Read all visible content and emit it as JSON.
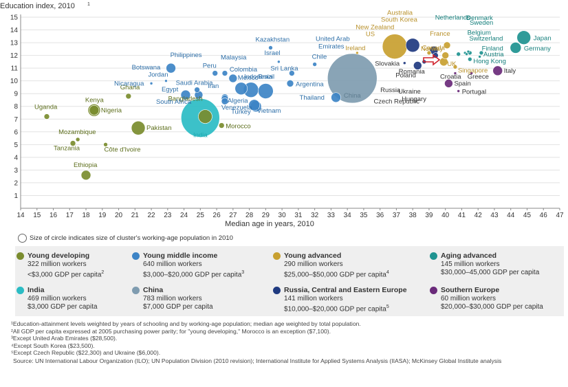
{
  "chart_data": {
    "type": "scatter",
    "ylabel": "Education index, 2010",
    "ylabel_sup": "1",
    "xlabel": "Median age in years, 2010",
    "xlim": [
      14,
      47
    ],
    "ylim": [
      0,
      15
    ],
    "xticks": [
      14,
      15,
      16,
      17,
      18,
      19,
      20,
      21,
      22,
      23,
      24,
      25,
      26,
      27,
      28,
      29,
      30,
      31,
      32,
      33,
      34,
      35,
      36,
      37,
      38,
      39,
      40,
      41,
      42,
      43,
      44,
      45,
      46,
      47
    ],
    "yticks": [
      1,
      2,
      3,
      4,
      5,
      6,
      7,
      8,
      9,
      10,
      11,
      12,
      13,
      14,
      15
    ],
    "grid": true,
    "series": [
      {
        "name": "Young developing",
        "color": "#7a8c2e",
        "points": [
          {
            "label": "Uganda",
            "x": 15.6,
            "y": 7.2,
            "r": 4
          },
          {
            "label": "Kenya",
            "x": 18.5,
            "y": 7.7,
            "r": 9
          },
          {
            "label": "Nigeria",
            "x": 18.5,
            "y": 7.7,
            "r": 7
          },
          {
            "label": "Ghana",
            "x": 20.6,
            "y": 8.8,
            "r": 4
          },
          {
            "label": "Mozambique",
            "x": 17.5,
            "y": 5.4,
            "r": 3
          },
          {
            "label": "Tanzania",
            "x": 17.2,
            "y": 5.1,
            "r": 4
          },
          {
            "label": "Côte d'Ivoire",
            "x": 19.2,
            "y": 5.0,
            "r": 3
          },
          {
            "label": "Ethiopia",
            "x": 18.0,
            "y": 2.6,
            "r": 7
          },
          {
            "label": "Pakistan",
            "x": 21.2,
            "y": 6.3,
            "r": 10
          },
          {
            "label": "Bangladesh",
            "x": 25.3,
            "y": 7.2,
            "r": 10
          },
          {
            "label": "Morocco",
            "x": 26.3,
            "y": 6.5,
            "r": 4
          }
        ]
      },
      {
        "name": "Young middle income",
        "color": "#3d84c6",
        "points": [
          {
            "label": "Botswana",
            "x": 23.2,
            "y": 11.0,
            "r": 7
          },
          {
            "label": "Philippines",
            "x": 23.2,
            "y": 11.0,
            "r": 0
          },
          {
            "label": "Jordan",
            "x": 22.9,
            "y": 10.0,
            "r": 2
          },
          {
            "label": "Nicaragua",
            "x": 22.0,
            "y": 9.8,
            "r": 2
          },
          {
            "label": "Saudi Arabia",
            "x": 24.8,
            "y": 9.3,
            "r": 4
          },
          {
            "label": "Egypt",
            "x": 24.1,
            "y": 8.9,
            "r": 7
          },
          {
            "label": "South Africa",
            "x": 24.9,
            "y": 8.9,
            "r": 6
          },
          {
            "label": "Peru",
            "x": 25.9,
            "y": 10.6,
            "r": 4
          },
          {
            "label": "Malaysia",
            "x": 26.5,
            "y": 10.6,
            "r": 4
          },
          {
            "label": "Colombia",
            "x": 27.0,
            "y": 10.2,
            "r": 6
          },
          {
            "label": "Iran",
            "x": 26.5,
            "y": 8.7,
            "r": 5
          },
          {
            "label": "Algeria",
            "x": 26.5,
            "y": 8.6,
            "r": 5
          },
          {
            "label": "Venezuela",
            "x": 26.5,
            "y": 8.4,
            "r": 5
          },
          {
            "label": "Mexico",
            "x": 27.5,
            "y": 9.4,
            "r": 9
          },
          {
            "label": "Indonesia",
            "x": 28.1,
            "y": 9.3,
            "r": 11
          },
          {
            "label": "Brazil",
            "x": 29.0,
            "y": 9.2,
            "r": 11
          },
          {
            "label": "Turkey",
            "x": 28.4,
            "y": 8.0,
            "r": 8
          },
          {
            "label": "Vietnam",
            "x": 28.3,
            "y": 8.1,
            "r": 8
          },
          {
            "label": "Kazakhstan",
            "x": 29.3,
            "y": 12.6,
            "r": 3
          },
          {
            "label": "Israel",
            "x": 29.8,
            "y": 11.5,
            "r": 2
          },
          {
            "label": "Sri Lanka",
            "x": 30.6,
            "y": 10.6,
            "r": 4
          },
          {
            "label": "Argentina",
            "x": 30.5,
            "y": 9.8,
            "r": 5
          },
          {
            "label": "Chile",
            "x": 32.0,
            "y": 11.3,
            "r": 3
          },
          {
            "label": "Thailand",
            "x": 33.3,
            "y": 8.7,
            "r": 7
          },
          {
            "label": "United Arab Emirates",
            "x": 32.9,
            "y": 12.0,
            "r": 0
          }
        ]
      },
      {
        "name": "Young advanced",
        "color": "#c8a030",
        "points": [
          {
            "label": "Australia",
            "x": 36.9,
            "y": 12.7,
            "r": 18
          },
          {
            "label": "South Korea",
            "x": 36.9,
            "y": 12.7,
            "r": 0
          },
          {
            "label": "New Zealand",
            "x": 36.7,
            "y": 12.7,
            "r": 0
          },
          {
            "label": "US",
            "x": 36.6,
            "y": 12.7,
            "r": 0
          },
          {
            "label": "Ireland",
            "x": 34.6,
            "y": 12.2,
            "r": 2
          },
          {
            "label": "France",
            "x": 40.1,
            "y": 12.8,
            "r": 5
          },
          {
            "label": "Canada",
            "x": 40.0,
            "y": 12.0,
            "r": 5
          },
          {
            "label": "Norway",
            "x": 39.0,
            "y": 12.2,
            "r": 3
          },
          {
            "label": "UK",
            "x": 39.9,
            "y": 11.5,
            "r": 6
          },
          {
            "label": "Singapore",
            "x": 40.6,
            "y": 11.1,
            "r": 3
          }
        ]
      },
      {
        "name": "Aging advanced",
        "color": "#1e9390",
        "points": [
          {
            "label": "Netherlands",
            "x": 40.8,
            "y": 12.1,
            "r": 3
          },
          {
            "label": "Denmark",
            "x": 41.2,
            "y": 12.2,
            "r": 2
          },
          {
            "label": "Sweden",
            "x": 41.4,
            "y": 12.3,
            "r": 2
          },
          {
            "label": "Belgium",
            "x": 41.3,
            "y": 12.1,
            "r": 2
          },
          {
            "label": "Switzerland",
            "x": 41.5,
            "y": 12.2,
            "r": 3
          },
          {
            "label": "Finland",
            "x": 42.1,
            "y": 11.9,
            "r": 2
          },
          {
            "label": "Austria",
            "x": 42.2,
            "y": 12.2,
            "r": 3
          },
          {
            "label": "Hong Kong",
            "x": 41.5,
            "y": 11.7,
            "r": 3
          },
          {
            "label": "Japan",
            "x": 44.8,
            "y": 13.4,
            "r": 10
          },
          {
            "label": "Germany",
            "x": 44.3,
            "y": 12.6,
            "r": 8
          }
        ]
      },
      {
        "name": "India",
        "color": "#2bbcc4",
        "points": [
          {
            "label": "India",
            "x": 25.0,
            "y": 7.1,
            "r": 28
          }
        ]
      },
      {
        "name": "China",
        "color": "#7f9cb0",
        "points": [
          {
            "label": "China",
            "x": 34.3,
            "y": 10.2,
            "r": 36
          }
        ]
      },
      {
        "name": "Russia, Central and Eastern Europe",
        "color": "#1f3a80",
        "points": [
          {
            "label": "Russia",
            "x": 38.0,
            "y": 12.8,
            "r": 10
          },
          {
            "label": "Slovakia",
            "x": 37.5,
            "y": 11.4,
            "r": 2
          },
          {
            "label": "Poland",
            "x": 38.3,
            "y": 11.2,
            "r": 6
          },
          {
            "label": "Romania",
            "x": 38.7,
            "y": 11.5,
            "r": 3
          },
          {
            "label": "Ukraine",
            "x": 39.3,
            "y": 12.4,
            "r": 6
          },
          {
            "label": "Hungary",
            "x": 39.3,
            "y": 12.4,
            "r": 0
          },
          {
            "label": "Czech Republic",
            "x": 39.4,
            "y": 12.0,
            "r": 4
          }
        ]
      },
      {
        "name": "Southern Europe",
        "color": "#6a2a7a",
        "points": [
          {
            "label": "Croatia",
            "x": 40.6,
            "y": 10.6,
            "r": 2
          },
          {
            "label": "Greece",
            "x": 41.6,
            "y": 10.6,
            "r": 2
          },
          {
            "label": "Spain",
            "x": 40.2,
            "y": 9.8,
            "r": 6
          },
          {
            "label": "Portugal",
            "x": 40.8,
            "y": 9.2,
            "r": 2
          },
          {
            "label": "Italy",
            "x": 43.2,
            "y": 10.8,
            "r": 7
          }
        ]
      }
    ]
  },
  "legend": {
    "size_note": "Size of circle indicates size of cluster's working-age population in 2010",
    "clusters": [
      {
        "name": "Young developing",
        "color": "#7a8c2e",
        "workers": "322 million workers",
        "gdp": "<$3,000 GDP per capita",
        "sup": "2"
      },
      {
        "name": "Young middle income",
        "color": "#3d84c6",
        "workers": "640 million workers",
        "gdp": "$3,000–$20,000 GDP per capita",
        "sup": "3"
      },
      {
        "name": "Young advanced",
        "color": "#c8a030",
        "workers": "290 million workers",
        "gdp": "$25,000–$50,000 GDP per capita",
        "sup": "4"
      },
      {
        "name": "Aging advanced",
        "color": "#1e9390",
        "workers": "145 million workers",
        "gdp": "$30,000–45,000 GDP per capita",
        "sup": ""
      },
      {
        "name": "India",
        "color": "#2bbcc4",
        "workers": "469 million workers",
        "gdp": "$3,000 GDP per capita",
        "sup": ""
      },
      {
        "name": "China",
        "color": "#7f9cb0",
        "workers": "783 million workers",
        "gdp": "$7,000 GDP per capita",
        "sup": ""
      },
      {
        "name": "Russia, Central and Eastern Europe",
        "color": "#1f3a80",
        "workers": "141 million workers",
        "gdp": "$10,000–$20,000 GDP per capita",
        "sup": "5"
      },
      {
        "name": "Southern Europe",
        "color": "#6a2a7a",
        "workers": "60 million workers",
        "gdp": "$20,000–$30,000 GDP per capita",
        "sup": ""
      }
    ]
  },
  "footnotes": [
    "¹Education-attainment levels weighted by years of schooling and by working-age population; median age weighted by total population.",
    "²All GDP per capita expressed at 2005 purchasing power parity; for \"young developing,\" Morocco is an exception ($7,100).",
    "³Except United Arab Emirates ($28,500).",
    "⁴Except South Korea ($23,500).",
    "⁵Except Czech Republic ($22,300) and Ukraine ($6,000).",
    "Source: UN International Labour Organization (ILO); UN Population Division (2010 revision); International Institute for Applied Systems Analysis (IIASA); McKinsey Global Institute analysis"
  ]
}
